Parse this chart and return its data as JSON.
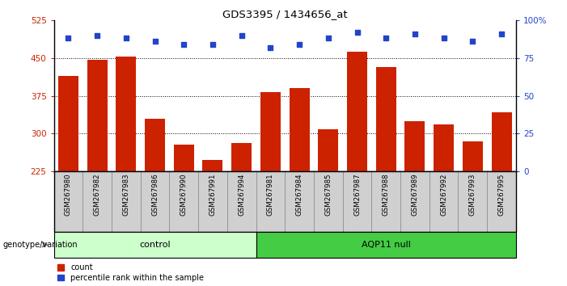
{
  "title": "GDS3395 / 1434656_at",
  "samples": [
    "GSM267980",
    "GSM267982",
    "GSM267983",
    "GSM267986",
    "GSM267990",
    "GSM267991",
    "GSM267994",
    "GSM267981",
    "GSM267984",
    "GSM267985",
    "GSM267987",
    "GSM267988",
    "GSM267989",
    "GSM267992",
    "GSM267993",
    "GSM267995"
  ],
  "counts": [
    415,
    447,
    452,
    330,
    278,
    248,
    282,
    382,
    390,
    308,
    462,
    432,
    325,
    318,
    285,
    342
  ],
  "percentile_ranks": [
    88,
    90,
    88,
    86,
    84,
    84,
    90,
    82,
    84,
    88,
    92,
    88,
    91,
    88,
    86,
    91
  ],
  "groups": [
    "control",
    "control",
    "control",
    "control",
    "control",
    "control",
    "control",
    "AQP11 null",
    "AQP11 null",
    "AQP11 null",
    "AQP11 null",
    "AQP11 null",
    "AQP11 null",
    "AQP11 null",
    "AQP11 null",
    "AQP11 null"
  ],
  "ylim_left": [
    225,
    525
  ],
  "ylim_right": [
    0,
    100
  ],
  "yticks_left": [
    225,
    300,
    375,
    450,
    525
  ],
  "yticks_right": [
    0,
    25,
    50,
    75,
    100
  ],
  "hlines": [
    300,
    375,
    450
  ],
  "bar_color": "#cc2200",
  "dot_color": "#2244cc",
  "control_color": "#ccffcc",
  "aqp11_color": "#44cc44",
  "control_label": "control",
  "aqp11_label": "AQP11 null",
  "group_label": "genotype/variation",
  "legend_count": "count",
  "legend_pct": "percentile rank within the sample",
  "label_bg_color": "#d0d0d0",
  "plot_bg": "#ffffff",
  "n_control": 7,
  "n_aqp11": 9
}
